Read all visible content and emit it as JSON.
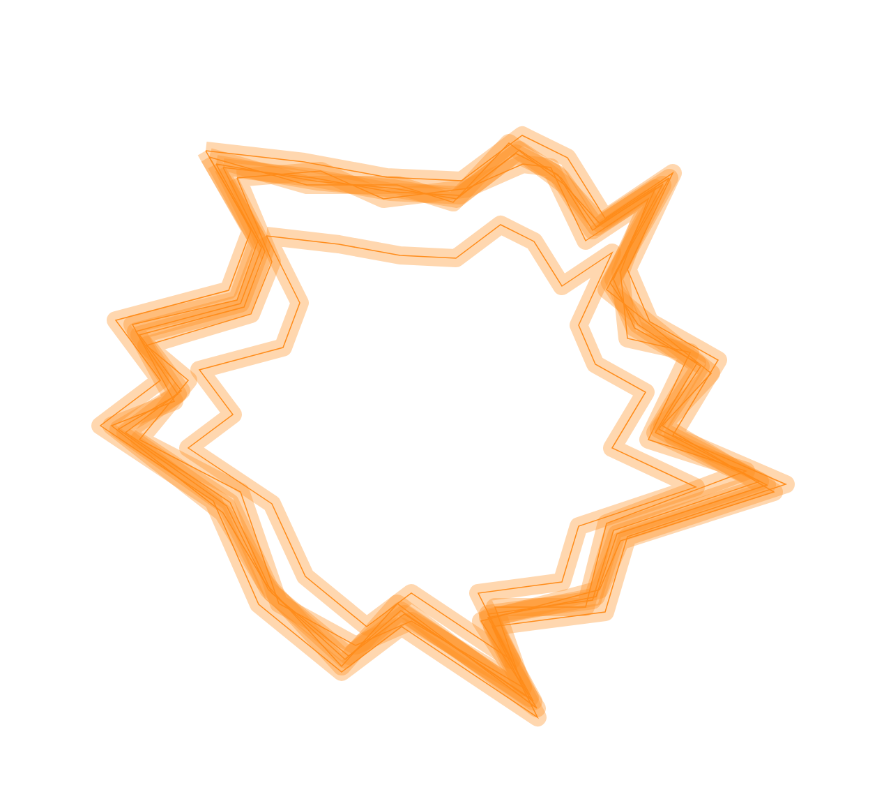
{
  "chart_data": {
    "type": "line",
    "xlim": [
      0,
      1268
    ],
    "ylim": [
      0,
      1135
    ],
    "tick_labels": false,
    "grid": false,
    "color": "#ff8c1a",
    "series": [
      {
        "color": "#ff8c1a",
        "x": [
          320,
          450,
          560,
          660,
          740,
          800,
          850,
          940,
          880,
          910,
          1000,
          940,
          1090,
          880,
          850,
          700,
          760,
          580,
          500,
          390,
          330,
          180,
          260,
          200,
          350,
          380
        ],
        "y": [
          895,
          880,
          860,
          855,
          915,
          885,
          805,
          865,
          735,
          665,
          615,
          515,
          445,
          375,
          275,
          255,
          135,
          255,
          195,
          285,
          415,
          515,
          575,
          655,
          695,
          775
        ]
      },
      {
        "color": "#ff8c1a",
        "x": [
          300,
          440,
          570,
          650,
          730,
          810,
          860,
          960,
          870,
          920,
          1020,
          950,
          1110,
          890,
          860,
          690,
          770,
          570,
          490,
          380,
          320,
          160,
          250,
          190,
          340,
          370
        ],
        "y": [
          910,
          870,
          870,
          845,
          930,
          870,
          815,
          880,
          720,
          680,
          600,
          525,
          430,
          360,
          290,
          245,
          120,
          270,
          180,
          300,
          400,
          525,
          560,
          670,
          705,
          790
        ]
      },
      {
        "color": "#ff8c1a",
        "x": [
          340,
          460,
          550,
          670,
          750,
          790,
          840,
          930,
          890,
          900,
          990,
          930,
          1070,
          870,
          840,
          710,
          750,
          590,
          510,
          400,
          345,
          200,
          270,
          210,
          360,
          390
        ],
        "y": [
          880,
          890,
          850,
          865,
          900,
          895,
          790,
          850,
          745,
          650,
          630,
          505,
          460,
          385,
          265,
          265,
          150,
          245,
          210,
          270,
          430,
          505,
          590,
          640,
          685,
          760
        ]
      },
      {
        "color": "#ff8c1a",
        "x": [
          310,
          455,
          565,
          655,
          745,
          805,
          855,
          950,
          875,
          915,
          1005,
          945,
          1100,
          885,
          855,
          700,
          765,
          575,
          495,
          385,
          325,
          170,
          255,
          195,
          345,
          375
        ],
        "y": [
          900,
          875,
          865,
          850,
          920,
          880,
          810,
          870,
          730,
          670,
          610,
          520,
          440,
          370,
          280,
          250,
          130,
          260,
          190,
          290,
          410,
          520,
          570,
          660,
          700,
          780
        ]
      },
      {
        "color": "#ff8c1a",
        "x": [
          382,
          486,
          574,
          654,
          718,
          766,
          806,
          878,
          830,
          854,
          926,
          878,
          998,
          830,
          806,
          686,
          734,
          590,
          526,
          438,
          390,
          270,
          334,
          286,
          406,
          430
        ],
        "y": [
          797,
          785,
          769,
          765,
          813,
          789,
          725,
          773,
          669,
          613,
          573,
          493,
          437,
          381,
          301,
          285,
          189,
          285,
          237,
          309,
          413,
          493,
          541,
          605,
          637,
          701
        ]
      },
      {
        "color": "#ff8c1a",
        "x": [
          295,
          436,
          555,
          662,
          749,
          814,
          868,
          965,
          900,
          932,
          1030,
          965,
          1127,
          900,
          868,
          706,
          771,
          576,
          490,
          371,
          306,
          144,
          230,
          166,
          328,
          360
        ],
        "y": [
          919,
          903,
          881,
          876,
          941,
          909,
          822,
          887,
          749,
          674,
          619,
          511,
          441,
          366,
          258,
          237,
          107,
          237,
          172,
          269,
          417,
          525,
          590,
          676,
          719,
          805
        ]
      }
    ]
  }
}
